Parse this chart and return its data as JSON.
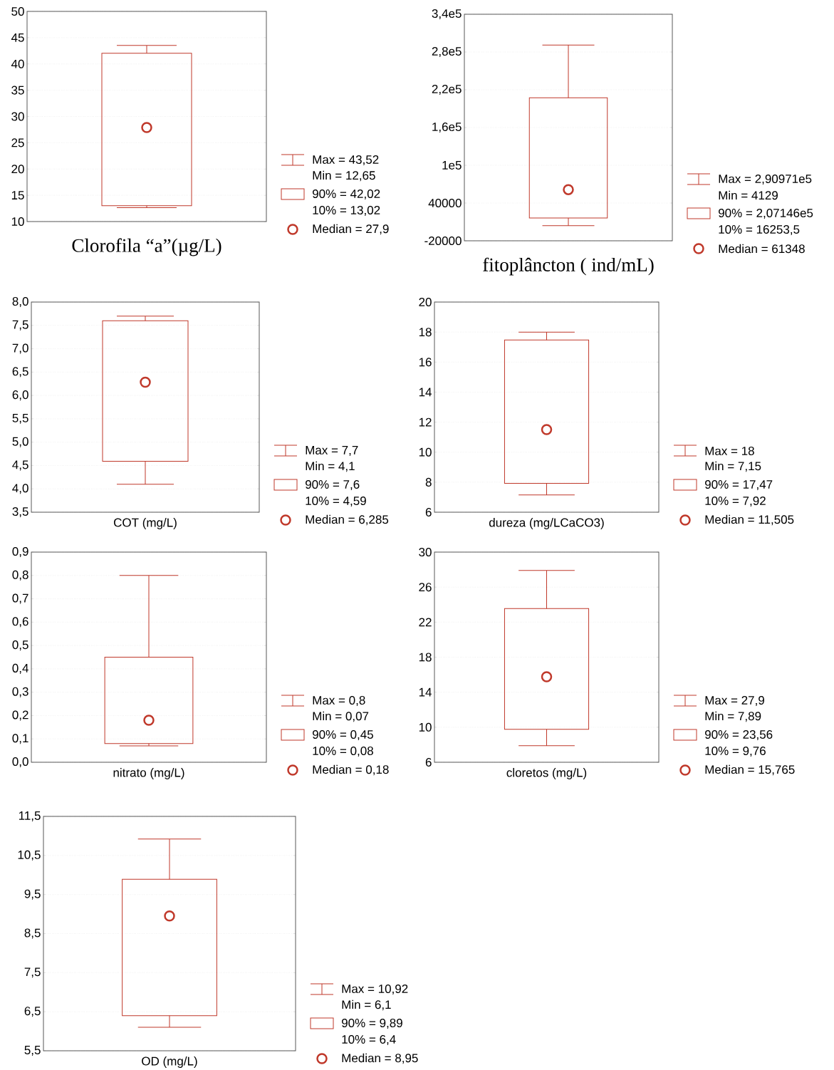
{
  "chart_data": [
    {
      "type": "box",
      "xlabel": "Clorofila “a”(µg/L)",
      "categories": [
        null
      ],
      "color": "#c0392b",
      "grid": "y",
      "marker": "circle",
      "boxes": [
        {
          "low": 12.65,
          "q1": 13.02,
          "median": 27.9,
          "q3": 42.02,
          "high": 43.52
        }
      ],
      "ylim": [
        10,
        50
      ],
      "yticks": [
        10,
        15,
        20,
        25,
        30,
        35,
        40,
        45,
        50
      ],
      "annotations": [
        "Max = 43,52",
        "Min = 12,65",
        "90% = 42,02",
        "10% = 13,02",
        "Median = 27,9"
      ]
    },
    {
      "type": "box",
      "xlabel": "fitoplâncton ( ind/mL)",
      "categories": [
        null
      ],
      "color": "#c0392b",
      "grid": "y",
      "marker": "circle",
      "boxes": [
        {
          "low": 4129,
          "q1": 16253.5,
          "median": 61348,
          "q3": 207146,
          "high": 290971
        }
      ],
      "ylim": [
        -20000,
        340000
      ],
      "yticks": [
        -20000,
        40000,
        {
          "value": 100000,
          "label": "1e5"
        },
        {
          "value": 160000,
          "label": "1,6e5"
        },
        {
          "value": 220000,
          "label": "2,2e5"
        },
        {
          "value": 280000,
          "label": "2,8e5"
        },
        {
          "value": 340000,
          "label": "3,4e5"
        }
      ],
      "annotations": [
        "Max = 2,90971e5",
        "Min = 4129",
        "90% = 2,07146e5",
        "10% = 16253,5",
        "Median = 61348"
      ]
    },
    {
      "type": "box",
      "xlabel": "COT (mg/L)",
      "categories": [
        null
      ],
      "color": "#c0392b",
      "grid": "y",
      "marker": "circle",
      "boxes": [
        {
          "low": 4.1,
          "q1": 4.59,
          "median": 6.285,
          "q3": 7.6,
          "high": 7.7
        }
      ],
      "ylim": [
        3.5,
        8.0
      ],
      "yticks": [
        {
          "value": 3.5,
          "label": "3,5"
        },
        {
          "value": 4.0,
          "label": "4,0"
        },
        {
          "value": 4.5,
          "label": "4,5"
        },
        {
          "value": 5.0,
          "label": "5,0"
        },
        {
          "value": 5.5,
          "label": "5,5"
        },
        {
          "value": 6.0,
          "label": "6,0"
        },
        {
          "value": 6.5,
          "label": "6,5"
        },
        {
          "value": 7.0,
          "label": "7,0"
        },
        {
          "value": 7.5,
          "label": "7,5"
        },
        {
          "value": 8.0,
          "label": "8,0"
        }
      ],
      "annotations": [
        "Max = 7,7",
        "Min = 4,1",
        "90% = 7,6",
        "10% = 4,59",
        "Median = 6,285"
      ]
    },
    {
      "type": "box",
      "xlabel": "dureza (mg/LCaCO3)",
      "categories": [
        null
      ],
      "color": "#c0392b",
      "grid": "y",
      "marker": "circle",
      "boxes": [
        {
          "low": 7.15,
          "q1": 7.92,
          "median": 11.505,
          "q3": 17.47,
          "high": 18
        }
      ],
      "ylim": [
        6,
        20
      ],
      "yticks": [
        6,
        8,
        10,
        12,
        14,
        16,
        18,
        20
      ],
      "annotations": [
        "Max = 18",
        "Min = 7,15",
        "90% = 17,47",
        "10% = 7,92",
        "Median = 11,505"
      ]
    },
    {
      "type": "box",
      "xlabel": "nitrato (mg/L)",
      "categories": [
        null
      ],
      "color": "#c0392b",
      "grid": "y",
      "marker": "circle",
      "boxes": [
        {
          "low": 0.07,
          "q1": 0.08,
          "median": 0.18,
          "q3": 0.45,
          "high": 0.8
        }
      ],
      "ylim": [
        0,
        0.9
      ],
      "yticks": [
        {
          "value": 0,
          "label": "0,0"
        },
        {
          "value": 0.1,
          "label": "0,1"
        },
        {
          "value": 0.2,
          "label": "0,2"
        },
        {
          "value": 0.3,
          "label": "0,3"
        },
        {
          "value": 0.4,
          "label": "0,4"
        },
        {
          "value": 0.5,
          "label": "0,5"
        },
        {
          "value": 0.6,
          "label": "0,6"
        },
        {
          "value": 0.7,
          "label": "0,7"
        },
        {
          "value": 0.8,
          "label": "0,8"
        },
        {
          "value": 0.9,
          "label": "0,9"
        }
      ],
      "annotations": [
        "Max = 0,8",
        "Min = 0,07",
        "90% = 0,45",
        "10% = 0,08",
        "Median = 0,18"
      ]
    },
    {
      "type": "box",
      "xlabel": "cloretos (mg/L)",
      "categories": [
        null
      ],
      "color": "#c0392b",
      "grid": "y",
      "marker": "circle",
      "boxes": [
        {
          "low": 7.89,
          "q1": 9.76,
          "median": 15.765,
          "q3": 23.56,
          "high": 27.9
        }
      ],
      "ylim": [
        6,
        30
      ],
      "yticks": [
        6,
        10,
        14,
        18,
        22,
        26,
        30
      ],
      "annotations": [
        "Max = 27,9",
        "Min = 7,89",
        "90% = 23,56",
        "10% = 9,76",
        "Median = 15,765"
      ]
    },
    {
      "type": "box",
      "xlabel": "OD (mg/L)",
      "categories": [
        null
      ],
      "color": "#c0392b",
      "grid": "y",
      "marker": "circle",
      "boxes": [
        {
          "low": 6.1,
          "q1": 6.4,
          "median": 8.95,
          "q3": 9.89,
          "high": 10.92
        }
      ],
      "ylim": [
        5.5,
        11.5
      ],
      "yticks": [
        {
          "value": 5.5,
          "label": "5,5"
        },
        {
          "value": 6.5,
          "label": "6,5"
        },
        {
          "value": 7.5,
          "label": "7,5"
        },
        {
          "value": 8.5,
          "label": "8,5"
        },
        {
          "value": 9.5,
          "label": "9,5"
        },
        {
          "value": 10.5,
          "label": "10,5"
        },
        {
          "value": 11.5,
          "label": "11,5"
        }
      ],
      "annotations": [
        "Max = 10,92",
        "Min = 6,1",
        "90% = 9,89",
        "10% = 6,4",
        "Median = 8,95"
      ]
    }
  ]
}
